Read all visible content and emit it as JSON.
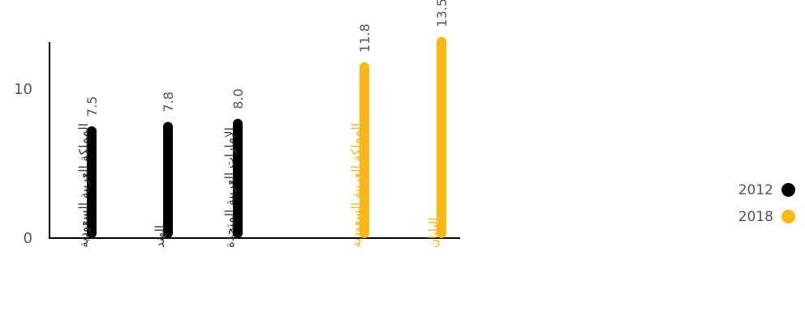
{
  "chart_data": {
    "type": "bar",
    "orientation": "vertical",
    "categories": [
      "المملكة العربية السعودية",
      "الهند",
      "الإمارات العربية المتحدة",
      "المملكة العربية السعودية",
      "اليابان"
    ],
    "values": [
      7.5,
      7.8,
      8.0,
      11.8,
      13.5
    ],
    "value_labels": [
      "7.5",
      "7.8",
      "8.0",
      "11.8",
      "13.5"
    ],
    "bar_years": [
      "2012",
      "2012",
      "2012",
      "2018",
      "2018"
    ],
    "legend": [
      {
        "label": "2012",
        "color": "#000000"
      },
      {
        "label": "2018",
        "color": "#F9B718"
      }
    ],
    "legend_position": "right",
    "y_ticks": [
      0,
      10
    ],
    "y_tick_labels": [
      "0",
      "10"
    ],
    "title": "",
    "xlabel": "",
    "ylabel": "",
    "grid": false
  }
}
